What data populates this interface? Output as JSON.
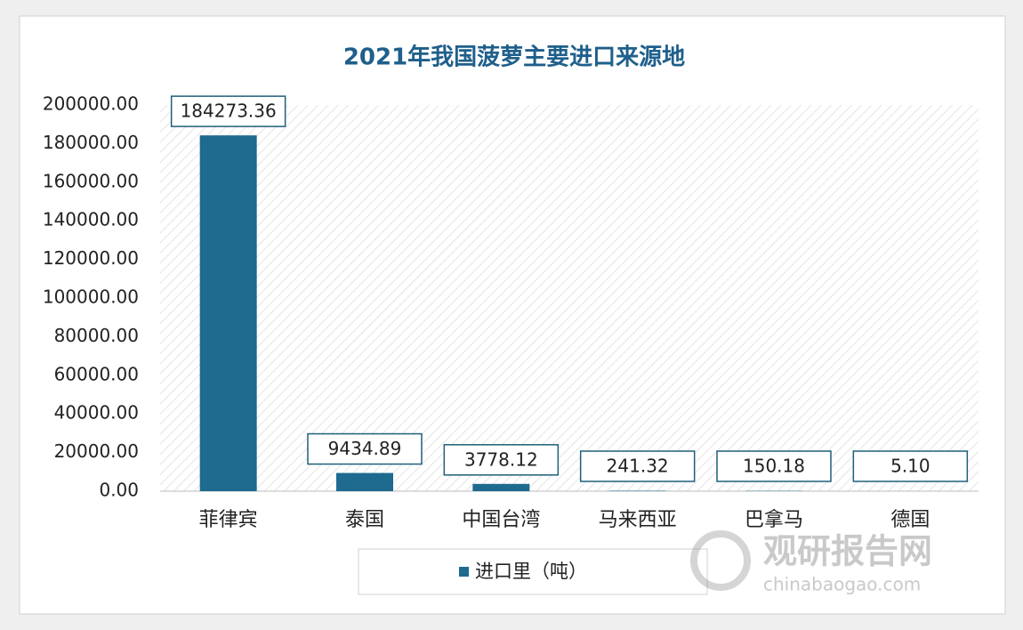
{
  "chart_data": {
    "type": "bar",
    "title": "2021年我国菠萝主要进口来源地",
    "categories": [
      "菲律宾",
      "泰国",
      "中国台湾",
      "马来西亚",
      "巴拿马",
      "德国"
    ],
    "series": [
      {
        "name": "进口里（吨）",
        "color": "#1f6a8f",
        "values": [
          184273.36,
          9434.89,
          3778.12,
          241.32,
          150.18,
          5.1
        ],
        "value_labels": [
          "184273.36",
          "9434.89",
          "3778.12",
          "241.32",
          "150.18",
          "5.10"
        ]
      }
    ],
    "ylim": [
      0,
      200000
    ],
    "yticks": [
      {
        "value": 0,
        "label": "0.00"
      },
      {
        "value": 20000,
        "label": "20000.00"
      },
      {
        "value": 40000,
        "label": "40000.00"
      },
      {
        "value": 60000,
        "label": "60000.00"
      },
      {
        "value": 80000,
        "label": "80000.00"
      },
      {
        "value": 100000,
        "label": "100000.00"
      },
      {
        "value": 120000,
        "label": "120000.00"
      },
      {
        "value": 140000,
        "label": "140000.00"
      },
      {
        "value": 160000,
        "label": "160000.00"
      },
      {
        "value": 180000,
        "label": "180000.00"
      },
      {
        "value": 200000,
        "label": "200000.00"
      }
    ],
    "legend": "bottom",
    "watermark": {
      "name": "观研报告网",
      "url": "chinabaogao.com"
    }
  }
}
